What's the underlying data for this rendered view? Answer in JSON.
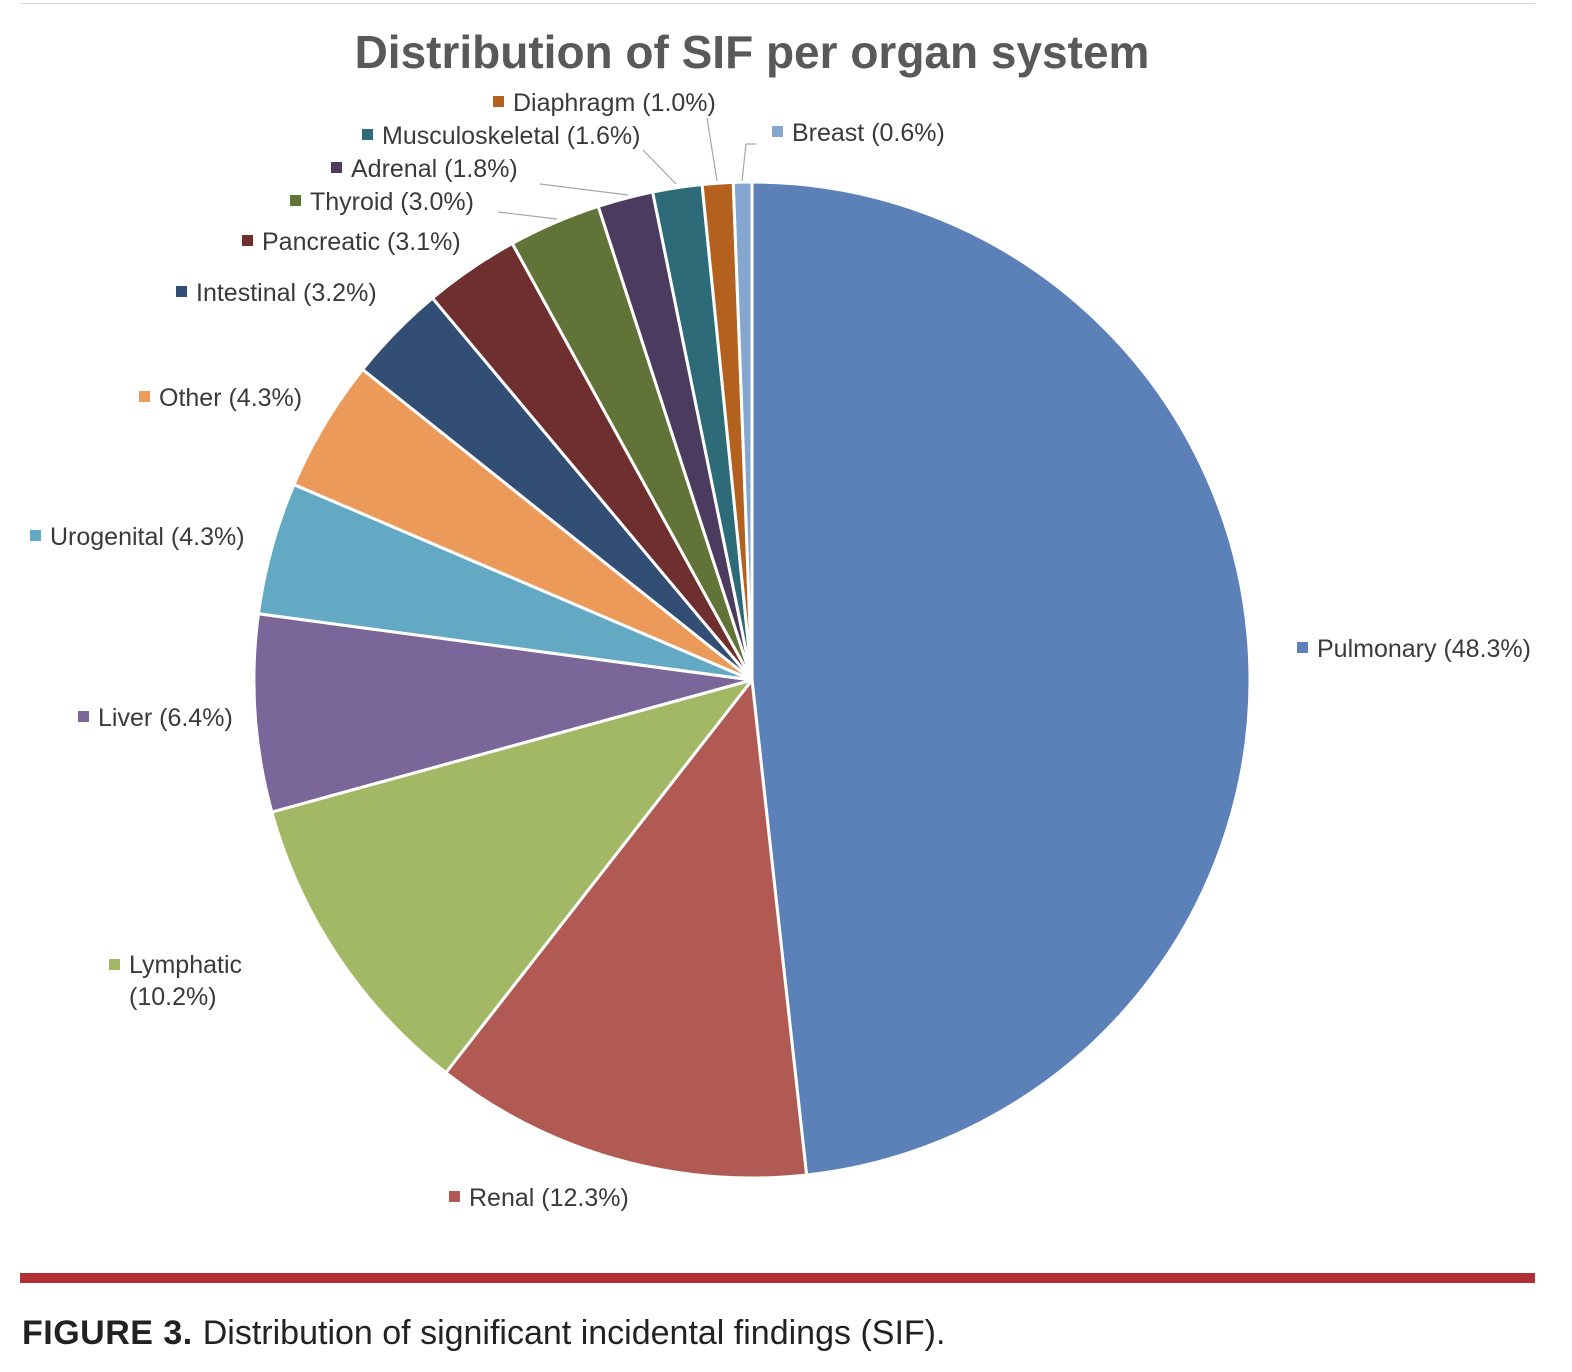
{
  "chart_data": {
    "type": "pie",
    "title": "Distribution of SIF per organ system",
    "start_angle_deg": 0,
    "direction": "clockwise",
    "slices": [
      {
        "name": "Pulmonary",
        "value": 48.3,
        "label": "Pulmonary (48.3%)",
        "color": "#5b81b8"
      },
      {
        "name": "Renal",
        "value": 12.3,
        "label": "Renal (12.3%)",
        "color": "#b15a53"
      },
      {
        "name": "Lymphatic",
        "value": 10.2,
        "label": "Lymphatic (10.2%)",
        "color": "#a3b864"
      },
      {
        "name": "Liver",
        "value": 6.4,
        "label": "Liver (6.4%)",
        "color": "#7b6699"
      },
      {
        "name": "Urogenital",
        "value": 4.3,
        "label": "Urogenital (4.3%)",
        "color": "#64a9c3"
      },
      {
        "name": "Other",
        "value": 4.3,
        "label": "Other (4.3%)",
        "color": "#eb9a59"
      },
      {
        "name": "Intestinal",
        "value": 3.2,
        "label": "Intestinal (3.2%)",
        "color": "#334e74"
      },
      {
        "name": "Pancreatic",
        "value": 3.1,
        "label": "Pancreatic (3.1%)",
        "color": "#6e2f2e"
      },
      {
        "name": "Thyroid",
        "value": 3.0,
        "label": "Thyroid (3.0%)",
        "color": "#627338"
      },
      {
        "name": "Adrenal",
        "value": 1.8,
        "label": "Adrenal (1.8%)",
        "color": "#4b3c5f"
      },
      {
        "name": "Musculoskeletal",
        "value": 1.6,
        "label": "Musculoskeletal (1.6%)",
        "color": "#2e6b78"
      },
      {
        "name": "Diaphragm",
        "value": 1.0,
        "label": "Diaphragm (1.0%)",
        "color": "#b4601f"
      },
      {
        "name": "Breast",
        "value": 0.6,
        "label": "Breast (0.6%)",
        "color": "#84a6cf"
      }
    ]
  },
  "caption": {
    "label": "FIGURE 3.",
    "text": "Distribution of significant incidental findings (SIF)."
  },
  "colors": {
    "title": "#595959",
    "label_text": "#3a3a3a",
    "leader_line": "#a6a6a6",
    "accent_rule": "#b22f35"
  }
}
